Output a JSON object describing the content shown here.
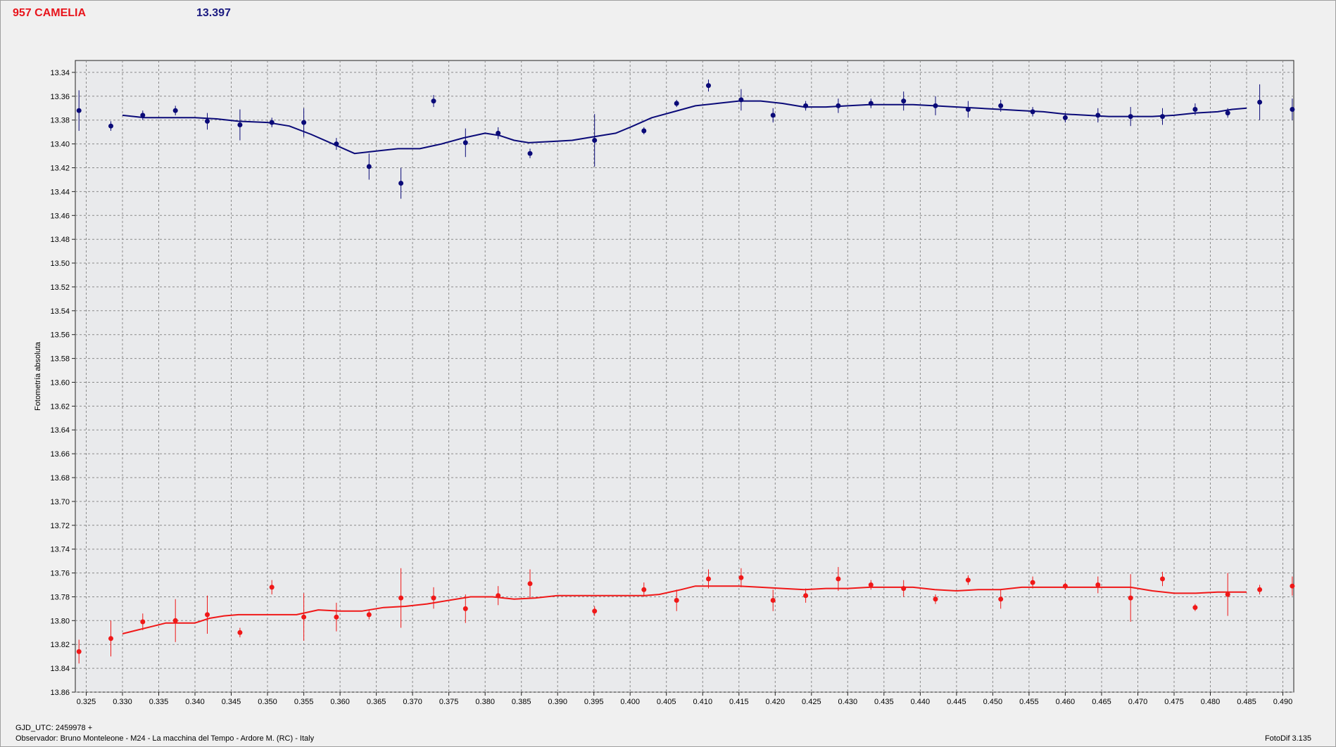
{
  "header": {
    "object_name": "957 CAMELIA",
    "magnitude": "13.397"
  },
  "footer": {
    "gjd": "GJD_UTC: 2459978 +",
    "observer": "Observador: Bruno Monteleone - M24 - La macchina del Tempo - Ardore M. (RC) - Italy",
    "software": "FotoDif 3.135"
  },
  "chart_data": {
    "type": "scatter",
    "title": "",
    "xlabel": "",
    "ylabel": "Fotometría absoluta",
    "xlim": [
      0.3235,
      0.4915
    ],
    "ylim": [
      13.33,
      13.86
    ],
    "y_inverted": true,
    "grid": true,
    "xticks": [
      0.325,
      0.33,
      0.335,
      0.34,
      0.345,
      0.35,
      0.355,
      0.36,
      0.365,
      0.37,
      0.375,
      0.38,
      0.385,
      0.39,
      0.395,
      0.4,
      0.405,
      0.41,
      0.415,
      0.42,
      0.425,
      0.43,
      0.435,
      0.44,
      0.445,
      0.45,
      0.455,
      0.46,
      0.465,
      0.47,
      0.475,
      0.48,
      0.485,
      0.49
    ],
    "xtick_labels": [
      "0.325",
      "0.330",
      "0.335",
      "0.340",
      "0.345",
      "0.350",
      "0.355",
      "0.360",
      "0.365",
      "0.370",
      "0.375",
      "0.380",
      "0.385",
      "0.390",
      "0.395",
      "0.400",
      "0.405",
      "0.410",
      "0.415",
      "0.420",
      "0.425",
      "0.430",
      "0.435",
      "0.440",
      "0.445",
      "0.450",
      "0.455",
      "0.460",
      "0.465",
      "0.470",
      "0.475",
      "0.480",
      "0.485",
      "0.490"
    ],
    "yticks": [
      13.34,
      13.36,
      13.38,
      13.4,
      13.42,
      13.44,
      13.46,
      13.48,
      13.5,
      13.52,
      13.54,
      13.56,
      13.58,
      13.6,
      13.62,
      13.64,
      13.66,
      13.68,
      13.7,
      13.72,
      13.74,
      13.76,
      13.78,
      13.8,
      13.82,
      13.84,
      13.86
    ],
    "ytick_labels": [
      "13.34",
      "13.36",
      "13.38",
      "13.40",
      "13.42",
      "13.44",
      "13.46",
      "13.48",
      "13.50",
      "13.52",
      "13.54",
      "13.56",
      "13.58",
      "13.60",
      "13.62",
      "13.64",
      "13.66",
      "13.68",
      "13.70",
      "13.72",
      "13.74",
      "13.76",
      "13.78",
      "13.80",
      "13.82",
      "13.84",
      "13.86"
    ],
    "series": [
      {
        "color": "#0a0a78",
        "points": [
          {
            "x": 0.324,
            "y": 13.372,
            "err": 0.017
          },
          {
            "x": 0.3284,
            "y": 13.385,
            "err": 0.004
          },
          {
            "x": 0.3328,
            "y": 13.376,
            "err": 0.004
          },
          {
            "x": 0.3373,
            "y": 13.372,
            "err": 0.004
          },
          {
            "x": 0.3417,
            "y": 13.381,
            "err": 0.007
          },
          {
            "x": 0.3462,
            "y": 13.384,
            "err": 0.013
          },
          {
            "x": 0.3506,
            "y": 13.382,
            "err": 0.004
          },
          {
            "x": 0.355,
            "y": 13.382,
            "err": 0.012
          },
          {
            "x": 0.3595,
            "y": 13.4,
            "err": 0.005
          },
          {
            "x": 0.364,
            "y": 13.419,
            "err": 0.011
          },
          {
            "x": 0.3684,
            "y": 13.433,
            "err": 0.013
          },
          {
            "x": 0.3729,
            "y": 13.364,
            "err": 0.005
          },
          {
            "x": 0.3773,
            "y": 13.399,
            "err": 0.012
          },
          {
            "x": 0.3818,
            "y": 13.391,
            "err": 0.005
          },
          {
            "x": 0.3862,
            "y": 13.408,
            "err": 0.004
          },
          {
            "x": 0.3951,
            "y": 13.397,
            "err": 0.022
          },
          {
            "x": 0.4019,
            "y": 13.389,
            "err": 0.003
          },
          {
            "x": 0.4064,
            "y": 13.366,
            "err": 0.003
          },
          {
            "x": 0.4108,
            "y": 13.351,
            "err": 0.005
          },
          {
            "x": 0.4153,
            "y": 13.363,
            "err": 0.009
          },
          {
            "x": 0.4197,
            "y": 13.376,
            "err": 0.006
          },
          {
            "x": 0.4242,
            "y": 13.368,
            "err": 0.004
          },
          {
            "x": 0.4287,
            "y": 13.368,
            "err": 0.006
          },
          {
            "x": 0.4332,
            "y": 13.366,
            "err": 0.004
          },
          {
            "x": 0.4377,
            "y": 13.364,
            "err": 0.008
          },
          {
            "x": 0.4421,
            "y": 13.368,
            "err": 0.008
          },
          {
            "x": 0.4466,
            "y": 13.371,
            "err": 0.007
          },
          {
            "x": 0.4511,
            "y": 13.368,
            "err": 0.005
          },
          {
            "x": 0.4555,
            "y": 13.373,
            "err": 0.004
          },
          {
            "x": 0.46,
            "y": 13.378,
            "err": 0.004
          },
          {
            "x": 0.4645,
            "y": 13.376,
            "err": 0.006
          },
          {
            "x": 0.469,
            "y": 13.377,
            "err": 0.008
          },
          {
            "x": 0.4734,
            "y": 13.377,
            "err": 0.007
          },
          {
            "x": 0.4779,
            "y": 13.371,
            "err": 0.005
          },
          {
            "x": 0.4824,
            "y": 13.374,
            "err": 0.004
          },
          {
            "x": 0.4868,
            "y": 13.365,
            "err": 0.015
          },
          {
            "x": 0.4913,
            "y": 13.371,
            "err": 0.009
          }
        ],
        "fit": [
          [
            0.33,
            13.376
          ],
          [
            0.333,
            13.378
          ],
          [
            0.336,
            13.378
          ],
          [
            0.34,
            13.378
          ],
          [
            0.343,
            13.379
          ],
          [
            0.346,
            13.381
          ],
          [
            0.35,
            13.382
          ],
          [
            0.353,
            13.385
          ],
          [
            0.356,
            13.392
          ],
          [
            0.359,
            13.4
          ],
          [
            0.362,
            13.408
          ],
          [
            0.365,
            13.406
          ],
          [
            0.368,
            13.404
          ],
          [
            0.371,
            13.404
          ],
          [
            0.374,
            13.4
          ],
          [
            0.377,
            13.395
          ],
          [
            0.38,
            13.391
          ],
          [
            0.382,
            13.393
          ],
          [
            0.384,
            13.397
          ],
          [
            0.386,
            13.399
          ],
          [
            0.389,
            13.398
          ],
          [
            0.392,
            13.397
          ],
          [
            0.395,
            13.394
          ],
          [
            0.398,
            13.391
          ],
          [
            0.4,
            13.386
          ],
          [
            0.403,
            13.378
          ],
          [
            0.406,
            13.373
          ],
          [
            0.409,
            13.368
          ],
          [
            0.412,
            13.366
          ],
          [
            0.415,
            13.364
          ],
          [
            0.418,
            13.364
          ],
          [
            0.421,
            13.366
          ],
          [
            0.424,
            13.369
          ],
          [
            0.427,
            13.369
          ],
          [
            0.43,
            13.368
          ],
          [
            0.433,
            13.367
          ],
          [
            0.436,
            13.367
          ],
          [
            0.439,
            13.367
          ],
          [
            0.442,
            13.368
          ],
          [
            0.445,
            13.369
          ],
          [
            0.448,
            13.37
          ],
          [
            0.451,
            13.371
          ],
          [
            0.454,
            13.372
          ],
          [
            0.457,
            13.373
          ],
          [
            0.46,
            13.375
          ],
          [
            0.463,
            13.376
          ],
          [
            0.466,
            13.377
          ],
          [
            0.469,
            13.377
          ],
          [
            0.472,
            13.377
          ],
          [
            0.475,
            13.376
          ],
          [
            0.478,
            13.374
          ],
          [
            0.481,
            13.373
          ],
          [
            0.483,
            13.371
          ],
          [
            0.485,
            13.37
          ]
        ]
      },
      {
        "color": "#f01818",
        "points": [
          {
            "x": 0.324,
            "y": 13.826,
            "err": 0.01
          },
          {
            "x": 0.3284,
            "y": 13.815,
            "err": 0.015
          },
          {
            "x": 0.3328,
            "y": 13.801,
            "err": 0.007
          },
          {
            "x": 0.3373,
            "y": 13.8,
            "err": 0.018
          },
          {
            "x": 0.3417,
            "y": 13.795,
            "err": 0.016
          },
          {
            "x": 0.3462,
            "y": 13.81,
            "err": 0.004
          },
          {
            "x": 0.3506,
            "y": 13.772,
            "err": 0.006
          },
          {
            "x": 0.355,
            "y": 13.797,
            "err": 0.02
          },
          {
            "x": 0.3595,
            "y": 13.797,
            "err": 0.012
          },
          {
            "x": 0.364,
            "y": 13.795,
            "err": 0.004
          },
          {
            "x": 0.3684,
            "y": 13.781,
            "err": 0.025
          },
          {
            "x": 0.3729,
            "y": 13.781,
            "err": 0.009
          },
          {
            "x": 0.3773,
            "y": 13.79,
            "err": 0.012
          },
          {
            "x": 0.3818,
            "y": 13.779,
            "err": 0.008
          },
          {
            "x": 0.3862,
            "y": 13.769,
            "err": 0.012
          },
          {
            "x": 0.3951,
            "y": 13.792,
            "err": 0.004
          },
          {
            "x": 0.4019,
            "y": 13.774,
            "err": 0.006
          },
          {
            "x": 0.4064,
            "y": 13.783,
            "err": 0.009
          },
          {
            "x": 0.4108,
            "y": 13.765,
            "err": 0.008
          },
          {
            "x": 0.4153,
            "y": 13.764,
            "err": 0.008
          },
          {
            "x": 0.4197,
            "y": 13.783,
            "err": 0.009
          },
          {
            "x": 0.4242,
            "y": 13.779,
            "err": 0.006
          },
          {
            "x": 0.4287,
            "y": 13.765,
            "err": 0.01
          },
          {
            "x": 0.4332,
            "y": 13.77,
            "err": 0.004
          },
          {
            "x": 0.4377,
            "y": 13.773,
            "err": 0.007
          },
          {
            "x": 0.4421,
            "y": 13.782,
            "err": 0.004
          },
          {
            "x": 0.4466,
            "y": 13.766,
            "err": 0.004
          },
          {
            "x": 0.4511,
            "y": 13.782,
            "err": 0.008
          },
          {
            "x": 0.4555,
            "y": 13.768,
            "err": 0.005
          },
          {
            "x": 0.46,
            "y": 13.771,
            "err": 0.003
          },
          {
            "x": 0.4645,
            "y": 13.77,
            "err": 0.007
          },
          {
            "x": 0.469,
            "y": 13.781,
            "err": 0.02
          },
          {
            "x": 0.4734,
            "y": 13.765,
            "err": 0.006
          },
          {
            "x": 0.4779,
            "y": 13.789,
            "err": 0.003
          },
          {
            "x": 0.4824,
            "y": 13.778,
            "err": 0.018
          },
          {
            "x": 0.4868,
            "y": 13.774,
            "err": 0.004
          },
          {
            "x": 0.4913,
            "y": 13.771,
            "err": 0.008
          }
        ],
        "fit": [
          [
            0.33,
            13.811
          ],
          [
            0.332,
            13.808
          ],
          [
            0.334,
            13.805
          ],
          [
            0.336,
            13.802
          ],
          [
            0.338,
            13.802
          ],
          [
            0.34,
            13.802
          ],
          [
            0.342,
            13.798
          ],
          [
            0.344,
            13.796
          ],
          [
            0.346,
            13.795
          ],
          [
            0.35,
            13.795
          ],
          [
            0.354,
            13.795
          ],
          [
            0.357,
            13.791
          ],
          [
            0.36,
            13.792
          ],
          [
            0.363,
            13.792
          ],
          [
            0.366,
            13.789
          ],
          [
            0.369,
            13.788
          ],
          [
            0.372,
            13.786
          ],
          [
            0.375,
            13.783
          ],
          [
            0.378,
            13.78
          ],
          [
            0.381,
            13.78
          ],
          [
            0.384,
            13.782
          ],
          [
            0.387,
            13.781
          ],
          [
            0.39,
            13.779
          ],
          [
            0.393,
            13.779
          ],
          [
            0.396,
            13.779
          ],
          [
            0.399,
            13.779
          ],
          [
            0.402,
            13.779
          ],
          [
            0.404,
            13.778
          ],
          [
            0.407,
            13.774
          ],
          [
            0.409,
            13.771
          ],
          [
            0.411,
            13.771
          ],
          [
            0.415,
            13.771
          ],
          [
            0.418,
            13.772
          ],
          [
            0.421,
            13.773
          ],
          [
            0.424,
            13.774
          ],
          [
            0.427,
            13.773
          ],
          [
            0.43,
            13.773
          ],
          [
            0.433,
            13.772
          ],
          [
            0.436,
            13.772
          ],
          [
            0.439,
            13.772
          ],
          [
            0.442,
            13.774
          ],
          [
            0.445,
            13.775
          ],
          [
            0.448,
            13.774
          ],
          [
            0.451,
            13.774
          ],
          [
            0.454,
            13.772
          ],
          [
            0.457,
            13.772
          ],
          [
            0.46,
            13.772
          ],
          [
            0.463,
            13.772
          ],
          [
            0.466,
            13.772
          ],
          [
            0.469,
            13.772
          ],
          [
            0.472,
            13.775
          ],
          [
            0.475,
            13.777
          ],
          [
            0.478,
            13.777
          ],
          [
            0.481,
            13.776
          ],
          [
            0.483,
            13.776
          ],
          [
            0.485,
            13.776
          ]
        ]
      }
    ]
  }
}
